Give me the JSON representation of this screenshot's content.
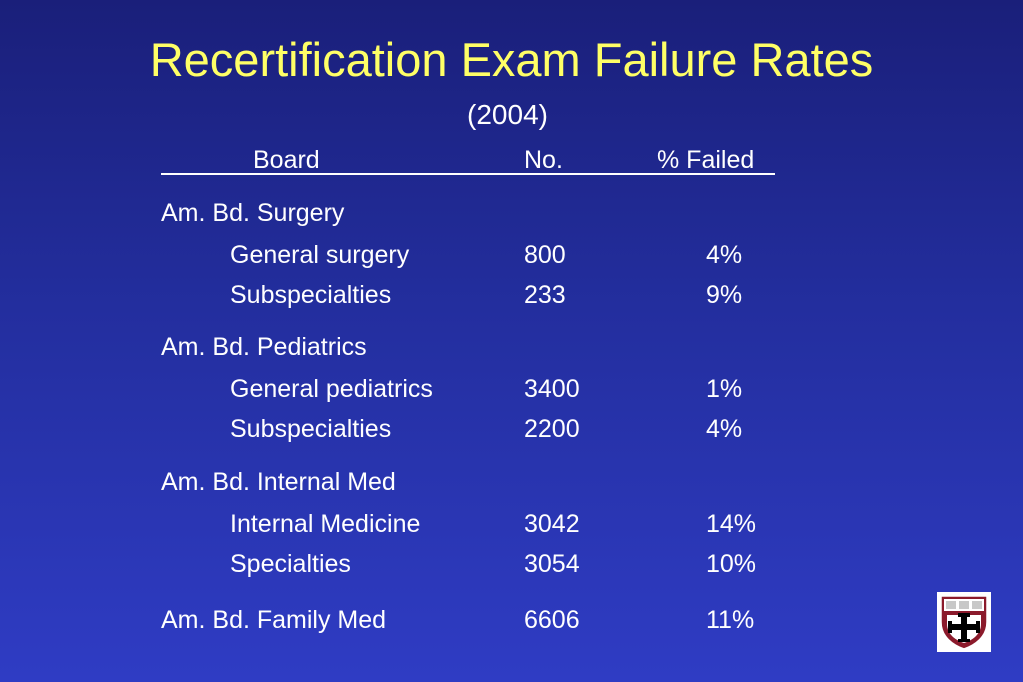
{
  "slide": {
    "title": "Recertification Exam Failure Rates",
    "subtitle": "(2004)"
  },
  "table": {
    "headers": [
      "Board",
      "No.",
      "% Failed"
    ],
    "groups": [
      {
        "board": "Am. Bd. Surgery",
        "rows": [
          {
            "label": "General surgery",
            "no": "800",
            "pct": "4%"
          },
          {
            "label": "Subspecialties",
            "no": "233",
            "pct": "9%"
          }
        ]
      },
      {
        "board": "Am. Bd. Pediatrics",
        "rows": [
          {
            "label": "General pediatrics",
            "no": "3400",
            "pct": "1%"
          },
          {
            "label": "Subspecialties",
            "no": "2200",
            "pct": "4%"
          }
        ]
      },
      {
        "board": "Am. Bd. Internal Med",
        "rows": [
          {
            "label": "Internal Medicine",
            "no": "3042",
            "pct": "14%"
          },
          {
            "label": "Specialties",
            "no": "3054",
            "pct": "10%"
          }
        ]
      },
      {
        "board": "Am. Bd. Family Med",
        "no": "6606",
        "pct": "11%",
        "rows": []
      }
    ]
  },
  "logo": {
    "name": "shield-crest-icon",
    "colors": {
      "shield": "#8b1a2b",
      "cross": "#ffffff",
      "border": "#ffffff"
    }
  }
}
